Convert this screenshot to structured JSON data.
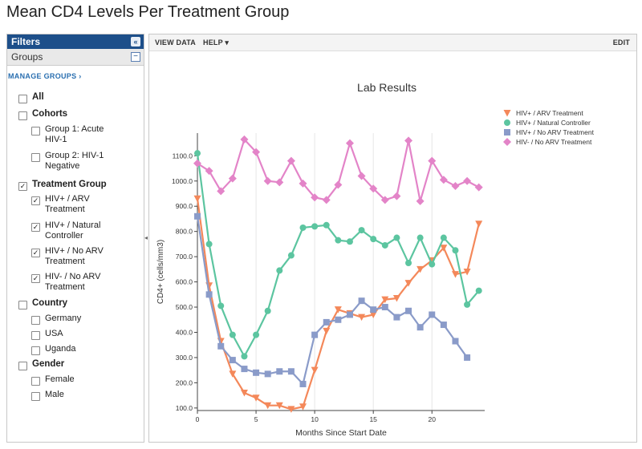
{
  "page": {
    "title": "Mean CD4 Levels Per Treatment Group"
  },
  "sidebar": {
    "header": "Filters",
    "collapse_glyph": "«",
    "groups_label": "Groups",
    "minus_glyph": "−",
    "manage_groups": "MANAGE GROUPS ›",
    "items": [
      {
        "label": "All",
        "checked": false,
        "level": 0,
        "category": true
      },
      {
        "label": "Cohorts",
        "checked": false,
        "level": 0,
        "category": true
      },
      {
        "label": "Group 1: Acute HIV-1",
        "checked": false,
        "level": 1,
        "category": false
      },
      {
        "label": "Group 2: HIV-1 Negative",
        "checked": false,
        "level": 1,
        "category": false
      },
      {
        "label": "Treatment Group",
        "checked": true,
        "level": 0,
        "category": true
      },
      {
        "label": "HIV+ / ARV Treatment",
        "checked": true,
        "level": 1,
        "category": false
      },
      {
        "label": "HIV+ / Natural Controller",
        "checked": true,
        "level": 1,
        "category": false
      },
      {
        "label": "HIV+ / No ARV Treatment",
        "checked": true,
        "level": 1,
        "category": false
      },
      {
        "label": "HIV- / No ARV Treatment",
        "checked": true,
        "level": 1,
        "category": false
      },
      {
        "label": "Country",
        "checked": false,
        "level": 0,
        "category": true
      },
      {
        "label": "Germany",
        "checked": false,
        "level": 1,
        "category": false
      },
      {
        "label": "USA",
        "checked": false,
        "level": 1,
        "category": false
      },
      {
        "label": "Uganda",
        "checked": false,
        "level": 1,
        "category": false
      },
      {
        "label": "Gender",
        "checked": false,
        "level": 0,
        "category": true
      },
      {
        "label": "Female",
        "checked": false,
        "level": 1,
        "category": false
      },
      {
        "label": "Male",
        "checked": false,
        "level": 1,
        "category": false
      }
    ]
  },
  "toolbar": {
    "view_data": "VIEW DATA",
    "help": "HELP ▾",
    "edit": "EDIT"
  },
  "chart_data": {
    "type": "line",
    "title": "Lab Results",
    "xlabel": "Months Since Start Date",
    "ylabel": "CD4+ (cells/mm3)",
    "xlim": [
      0,
      24.5
    ],
    "ylim": [
      90,
      1190
    ],
    "x_ticks": [
      0,
      5,
      10,
      15,
      20
    ],
    "y_ticks": [
      100,
      200,
      300,
      400,
      500,
      600,
      700,
      800,
      900,
      1000,
      1100
    ],
    "y_tick_labels": [
      "100.0",
      "200.0",
      "300.0",
      "400.0",
      "500.0",
      "600.0",
      "700.0",
      "800.0",
      "900.0",
      "1000.0",
      "1100.0"
    ],
    "grid": "vertical",
    "legend_position": "top-right",
    "series": [
      {
        "name": "HIV+ / ARV Treatment",
        "color": "#f4885a",
        "marker": "triangle-down",
        "x": [
          0,
          1,
          2,
          3,
          4,
          5,
          6,
          7,
          8,
          9,
          10,
          11,
          12,
          13,
          14,
          15,
          16,
          17,
          18,
          19,
          20,
          21,
          22,
          23,
          24
        ],
        "y": [
          930,
          585,
          365,
          235,
          160,
          140,
          110,
          110,
          95,
          105,
          250,
          405,
          490,
          475,
          460,
          470,
          530,
          535,
          595,
          650,
          685,
          735,
          630,
          640,
          830
        ]
      },
      {
        "name": "HIV+ / Natural Controller",
        "color": "#5cc5a0",
        "marker": "circle",
        "x": [
          0,
          1,
          2,
          3,
          4,
          5,
          6,
          7,
          8,
          9,
          10,
          11,
          12,
          13,
          14,
          15,
          16,
          17,
          18,
          19,
          20,
          21,
          22,
          23,
          24
        ],
        "y": [
          1110,
          750,
          505,
          390,
          305,
          390,
          485,
          645,
          705,
          815,
          820,
          825,
          765,
          760,
          805,
          770,
          745,
          775,
          675,
          775,
          670,
          775,
          725,
          510,
          565
        ]
      },
      {
        "name": "HIV+ / No ARV Treatment",
        "color": "#8a9bc9",
        "marker": "square",
        "x": [
          0,
          1,
          2,
          3,
          4,
          5,
          6,
          7,
          8,
          9,
          10,
          11,
          12,
          13,
          14,
          15,
          16,
          17,
          18,
          19,
          20,
          21,
          22,
          23
        ],
        "y": [
          860,
          550,
          345,
          290,
          255,
          240,
          235,
          245,
          245,
          195,
          390,
          440,
          450,
          470,
          525,
          490,
          500,
          460,
          485,
          420,
          470,
          430,
          365,
          300
        ]
      },
      {
        "name": "HIV- / No ARV Treatment",
        "color": "#e384c8",
        "marker": "diamond",
        "x": [
          0,
          1,
          2,
          3,
          4,
          5,
          6,
          7,
          8,
          9,
          10,
          11,
          12,
          13,
          14,
          15,
          16,
          17,
          18,
          19,
          20,
          21,
          22,
          23,
          24
        ],
        "y": [
          1070,
          1040,
          960,
          1010,
          1165,
          1115,
          1000,
          995,
          1080,
          990,
          935,
          925,
          985,
          1150,
          1020,
          970,
          925,
          940,
          1160,
          920,
          1080,
          1005,
          980,
          1000,
          975
        ]
      }
    ]
  }
}
